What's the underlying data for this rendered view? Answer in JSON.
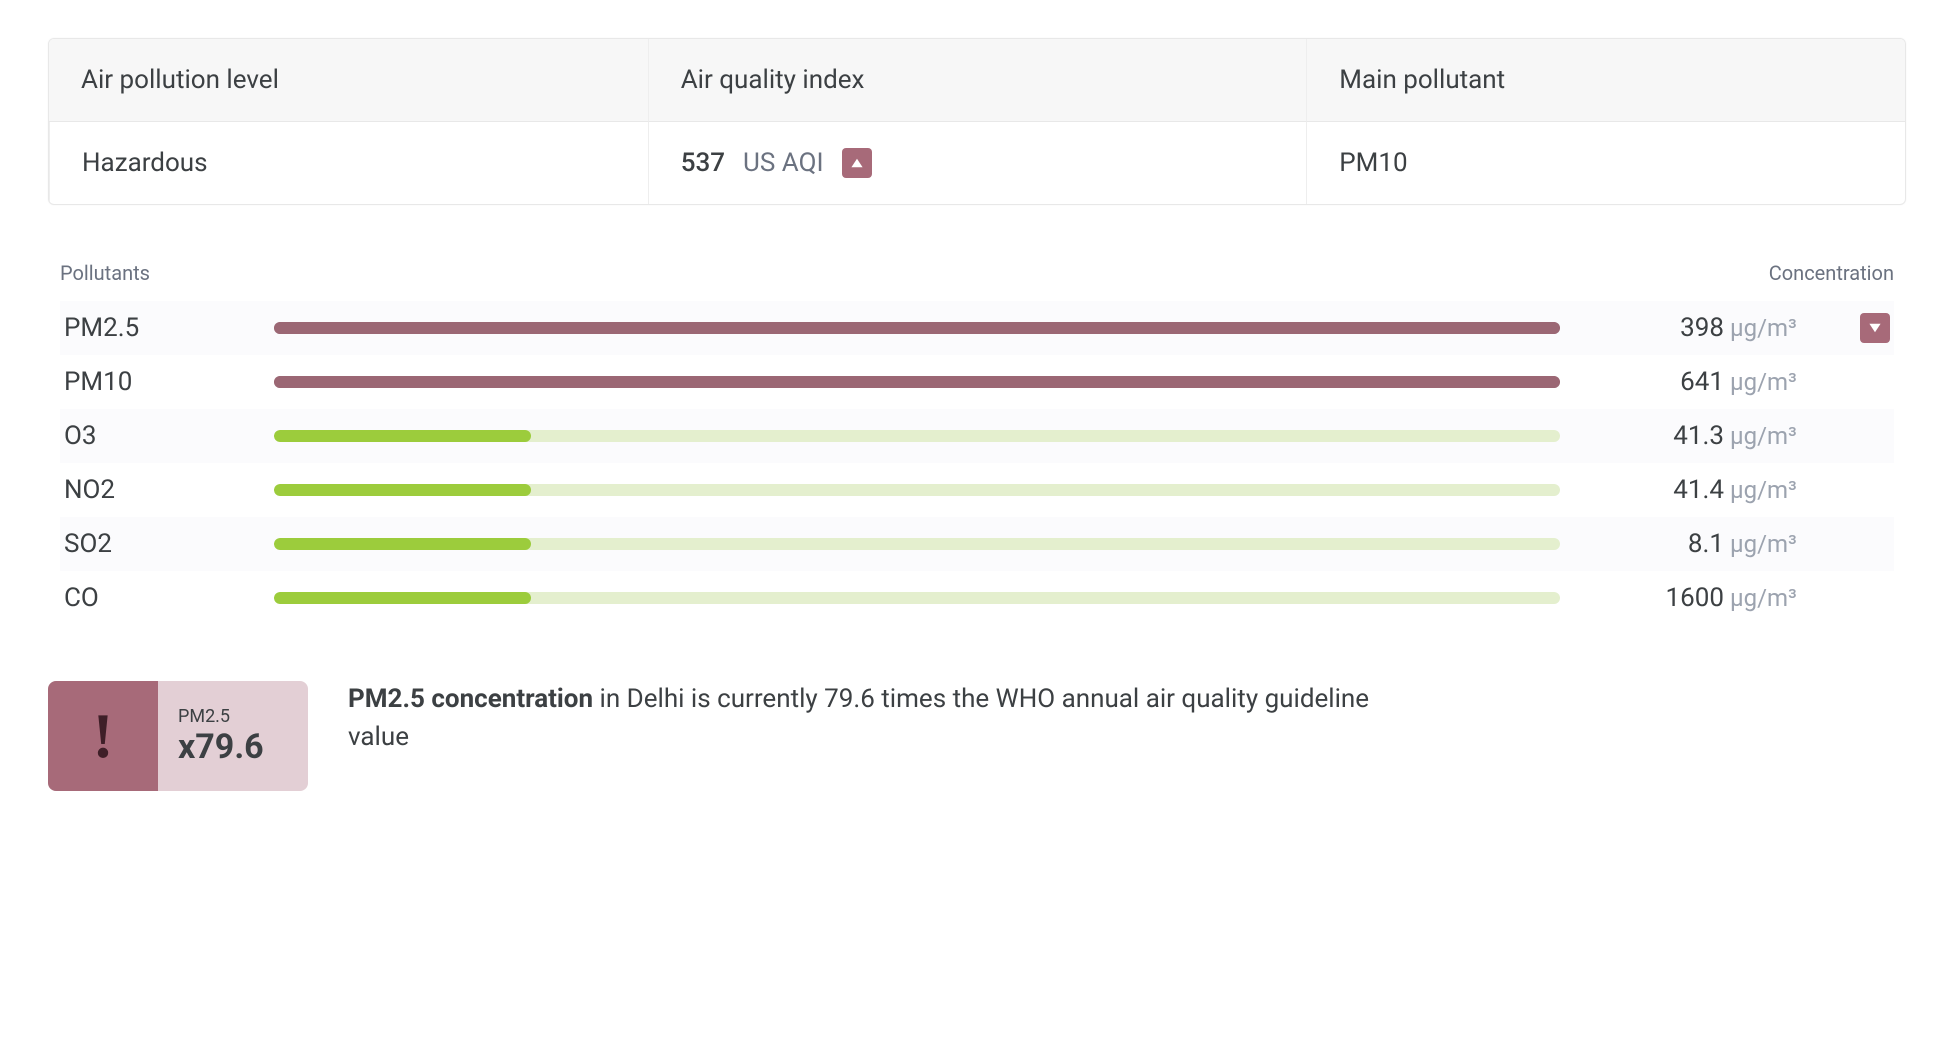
{
  "colors": {
    "hazard_accent": "#a76a79",
    "hazard_accent_light": "#e3cfd5",
    "good_fill": "#9ccc3c",
    "good_track": "#e4efce",
    "hazard_track": "#9b6774",
    "text_primary": "#3c4043",
    "text_muted": "#6b7280",
    "border": "#e8e8e8",
    "header_bg": "#f7f7f7"
  },
  "summary": {
    "headers": {
      "level": "Air pollution level",
      "aqi": "Air quality index",
      "main": "Main pollutant"
    },
    "values": {
      "level": "Hazardous",
      "aqi_value": "537",
      "aqi_scale": "US AQI",
      "main_pollutant": "PM10"
    }
  },
  "pollutants": {
    "heading_left": "Pollutants",
    "heading_right": "Concentration",
    "unit": "µg/m³",
    "rows": [
      {
        "name": "PM2.5",
        "value": "398",
        "fill_pct": 100,
        "fill_color": "#9b6774",
        "track_color": "#9b6774",
        "has_toggle": true
      },
      {
        "name": "PM10",
        "value": "641",
        "fill_pct": 100,
        "fill_color": "#9b6774",
        "track_color": "#9b6774",
        "has_toggle": false
      },
      {
        "name": "O3",
        "value": "41.3",
        "fill_pct": 20,
        "fill_color": "#9ccc3c",
        "track_color": "#e4efce",
        "has_toggle": false
      },
      {
        "name": "NO2",
        "value": "41.4",
        "fill_pct": 20,
        "fill_color": "#9ccc3c",
        "track_color": "#e4efce",
        "has_toggle": false
      },
      {
        "name": "SO2",
        "value": "8.1",
        "fill_pct": 20,
        "fill_color": "#9ccc3c",
        "track_color": "#e4efce",
        "has_toggle": false
      },
      {
        "name": "CO",
        "value": "1600",
        "fill_pct": 20,
        "fill_color": "#9ccc3c",
        "track_color": "#e4efce",
        "has_toggle": false
      }
    ]
  },
  "warning": {
    "exclaim": "!",
    "pollutant_label": "PM2.5",
    "multiplier": "x79.6",
    "text_bold": "PM2.5 concentration",
    "text_rest": " in Delhi is currently 79.6 times the WHO annual air quality guideline value"
  }
}
